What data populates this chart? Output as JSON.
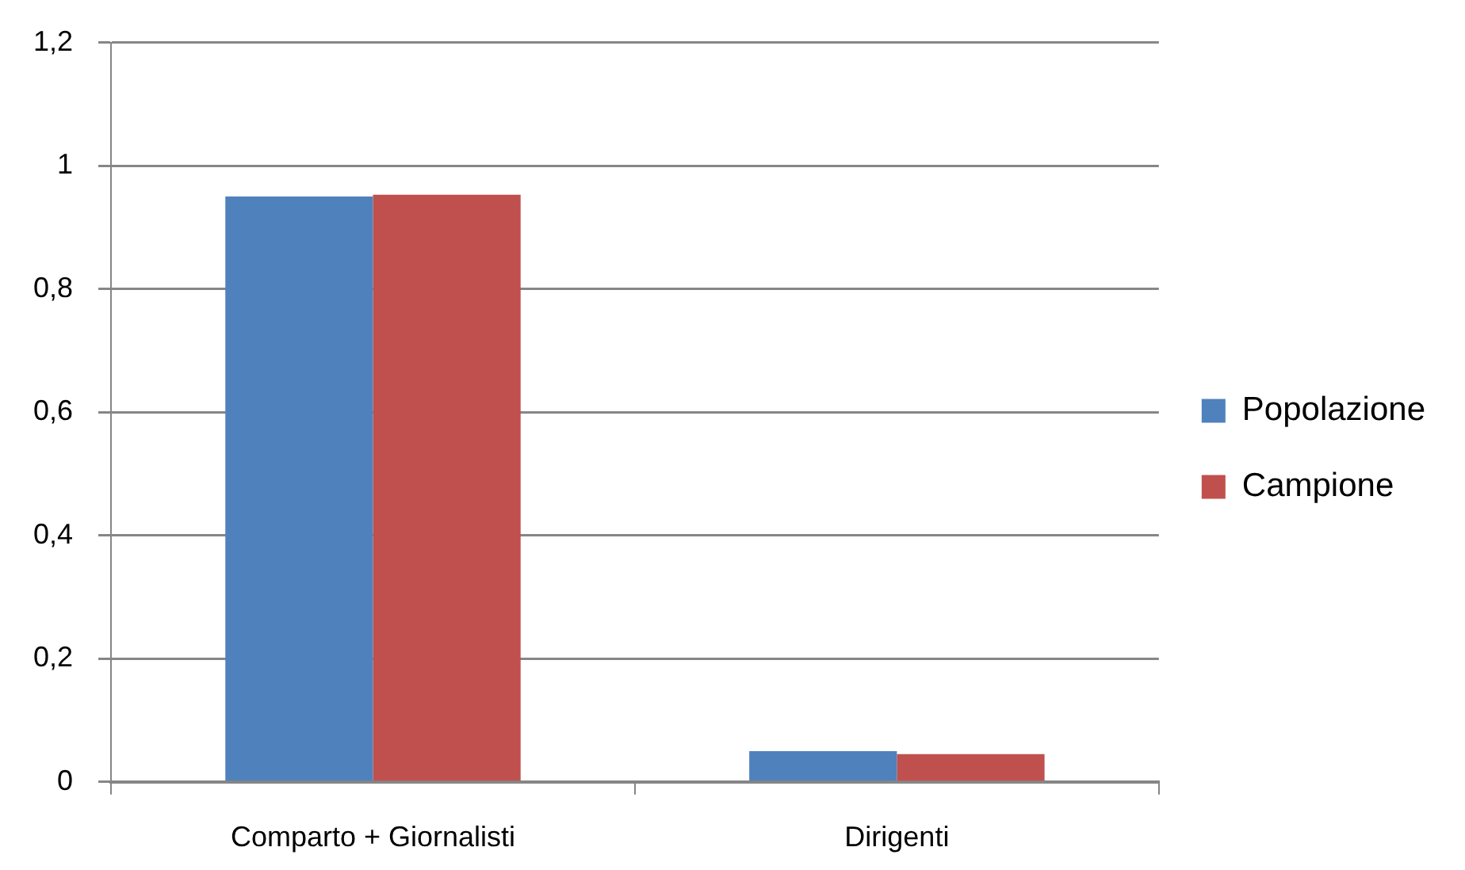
{
  "chart_data": {
    "type": "bar",
    "categories": [
      "Comparto + Giornalisti",
      "Dirigenti"
    ],
    "series": [
      {
        "name": "Popolazione",
        "color": "#4f81bd",
        "values": [
          0.95,
          0.05
        ]
      },
      {
        "name": "Campione",
        "color": "#c0504d",
        "values": [
          0.953,
          0.045
        ]
      }
    ],
    "ylim": [
      0,
      1.2
    ],
    "yticks": [
      0,
      {
        "value": 0.2,
        "label": "0,2"
      },
      {
        "value": 0.4,
        "label": "0,4"
      },
      {
        "value": 0.6,
        "label": "0,6"
      },
      {
        "value": 0.8,
        "label": "0,8"
      },
      1,
      {
        "value": 1.2,
        "label": "1,2"
      }
    ],
    "grid": "y",
    "legend": "right"
  }
}
